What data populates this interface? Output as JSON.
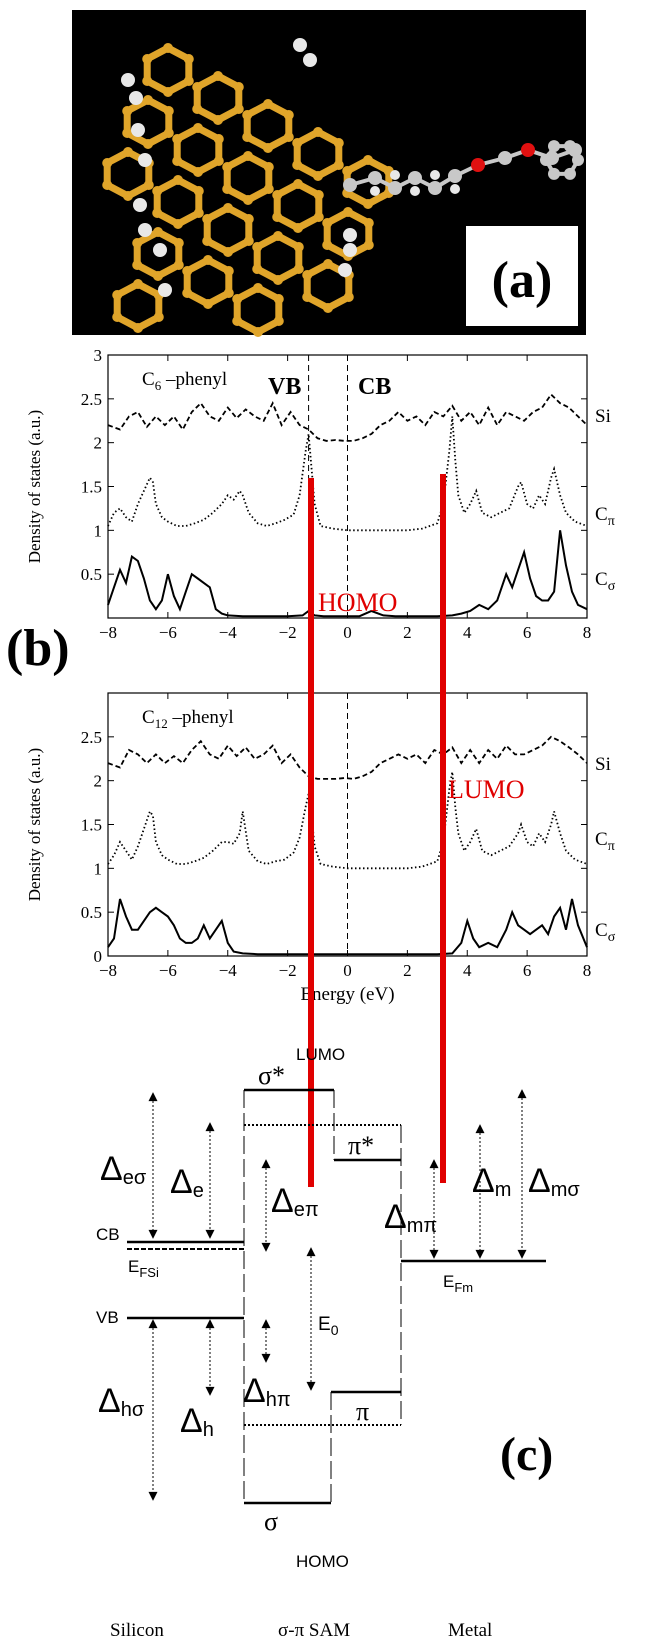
{
  "panel_a": {
    "label": "(a)",
    "colors": {
      "background": "#000000",
      "silicon": "#e0a52a",
      "hydrogen": "#e8e8e8",
      "carbon": "#c8c8c8",
      "oxygen": "#e01010"
    }
  },
  "panel_b": {
    "label": "(b)",
    "annotation_colors": {
      "homo_lumo": "#e00000"
    },
    "homo_label": "HOMO",
    "lumo_label": "LUMO",
    "vb_label": "VB",
    "cb_label": "CB",
    "homo_line_energy": -1.3,
    "lumo_line_energy": 3.2
  },
  "chart_data": [
    {
      "type": "line",
      "title": "C₆ –phenyl",
      "title_main": "C",
      "title_sub": "6",
      "title_rest": " –phenyl",
      "xlabel": "",
      "ylabel": "Density of states (a.u.)",
      "xlim": [
        -8,
        8
      ],
      "ylim": [
        0,
        3
      ],
      "xticks": [
        -8,
        -6,
        -4,
        -2,
        0,
        2,
        4,
        6,
        8
      ],
      "yticks": [
        0.5,
        1,
        1.5,
        2,
        2.5,
        3
      ],
      "ytick_labels": [
        "0.5",
        "1",
        "1.5",
        "2",
        "2.5",
        "3"
      ],
      "vlines": [
        -1.3,
        0
      ],
      "series": [
        {
          "name": "Si",
          "name_main": "Si",
          "name_sub": "",
          "style": "dashed",
          "offset": 2.15,
          "x": [
            -8,
            -7.6,
            -7.3,
            -7,
            -6.7,
            -6.4,
            -6.1,
            -5.8,
            -5.5,
            -5.2,
            -4.9,
            -4.6,
            -4.3,
            -4,
            -3.7,
            -3.4,
            -3.1,
            -2.8,
            -2.5,
            -2.2,
            -1.9,
            -1.6,
            -1.3,
            -1,
            -0.7,
            -0.4,
            -0.1,
            0.2,
            0.5,
            0.8,
            1.1,
            1.4,
            1.7,
            2,
            2.3,
            2.6,
            2.9,
            3.2,
            3.5,
            3.8,
            4.1,
            4.4,
            4.7,
            5,
            5.3,
            5.6,
            5.9,
            6.2,
            6.5,
            6.8,
            7.1,
            7.4,
            7.7,
            8
          ],
          "y": [
            2.2,
            2.15,
            2.3,
            2.35,
            2.18,
            2.3,
            2.2,
            2.3,
            2.15,
            2.35,
            2.45,
            2.3,
            2.25,
            2.4,
            2.28,
            2.38,
            2.3,
            2.25,
            2.45,
            2.2,
            2.35,
            2.2,
            2.15,
            2.05,
            2.02,
            2.03,
            2.02,
            2.02,
            2.05,
            2.1,
            2.2,
            2.25,
            2.35,
            2.25,
            2.3,
            2.2,
            2.35,
            2.3,
            2.42,
            2.25,
            2.35,
            2.2,
            2.4,
            2.2,
            2.35,
            2.3,
            2.25,
            2.35,
            2.4,
            2.55,
            2.45,
            2.4,
            2.3,
            2.2
          ]
        },
        {
          "name": "Cπ",
          "name_main": "C",
          "name_sub": "π",
          "style": "dotted",
          "x": [
            -8,
            -7.8,
            -7.6,
            -7.4,
            -7.2,
            -7,
            -6.8,
            -6.6,
            -6.5,
            -6.4,
            -6.2,
            -6,
            -5.7,
            -5.4,
            -5.1,
            -4.8,
            -4.5,
            -4.2,
            -4,
            -3.8,
            -3.6,
            -3.5,
            -3.3,
            -3,
            -2.7,
            -2.4,
            -2.1,
            -1.8,
            -1.6,
            -1.4,
            -1.3,
            -1.2,
            -1.1,
            -0.9,
            -0.5,
            0,
            0.5,
            1,
            1.5,
            2,
            2.5,
            3,
            3.2,
            3.4,
            3.5,
            3.6,
            3.7,
            3.9,
            4.1,
            4.3,
            4.5,
            4.8,
            5.1,
            5.4,
            5.7,
            5.8,
            6,
            6.2,
            6.4,
            6.6,
            6.8,
            6.9,
            7.1,
            7.3,
            7.6,
            8
          ],
          "y": [
            1.05,
            1.2,
            1.25,
            1.15,
            1.1,
            1.3,
            1.45,
            1.6,
            1.55,
            1.3,
            1.15,
            1.1,
            1.05,
            1.05,
            1.08,
            1.12,
            1.2,
            1.3,
            1.4,
            1.35,
            1.45,
            1.4,
            1.2,
            1.08,
            1.05,
            1.08,
            1.12,
            1.18,
            1.4,
            1.9,
            2.1,
            1.7,
            1.3,
            1.05,
            1.02,
            1.0,
            1.0,
            1.0,
            1.0,
            1.0,
            1.02,
            1.08,
            1.3,
            1.9,
            2.3,
            1.8,
            1.4,
            1.2,
            1.3,
            1.45,
            1.2,
            1.15,
            1.2,
            1.25,
            1.5,
            1.55,
            1.3,
            1.25,
            1.4,
            1.3,
            1.6,
            1.7,
            1.4,
            1.2,
            1.1,
            1.05
          ]
        },
        {
          "name": "Cσ",
          "name_main": "C",
          "name_sub": "σ",
          "style": "solid",
          "x": [
            -8,
            -7.8,
            -7.6,
            -7.4,
            -7.2,
            -7,
            -6.8,
            -6.6,
            -6.4,
            -6.2,
            -6,
            -5.8,
            -5.6,
            -5.4,
            -5.2,
            -5,
            -4.8,
            -4.6,
            -4.4,
            -4.2,
            -4,
            -3.5,
            -3,
            -2.5,
            -2,
            -1.5,
            -1.3,
            -1.1,
            -0.8,
            -0.4,
            0,
            0.4,
            0.8,
            1.2,
            1.6,
            2,
            2.5,
            3,
            3.5,
            3.8,
            4.1,
            4.4,
            4.7,
            5,
            5.3,
            5.5,
            5.7,
            5.9,
            6.1,
            6.3,
            6.5,
            6.7,
            6.9,
            7.1,
            7.3,
            7.5,
            7.7,
            8
          ],
          "y": [
            0.15,
            0.35,
            0.55,
            0.4,
            0.7,
            0.65,
            0.45,
            0.2,
            0.1,
            0.2,
            0.5,
            0.25,
            0.1,
            0.3,
            0.5,
            0.45,
            0.4,
            0.35,
            0.1,
            0.05,
            0.03,
            0.02,
            0.02,
            0.02,
            0.02,
            0.03,
            0.08,
            0.03,
            0.02,
            0.02,
            0.02,
            0.02,
            0.08,
            0.03,
            0.02,
            0.02,
            0.02,
            0.02,
            0.03,
            0.05,
            0.08,
            0.15,
            0.1,
            0.2,
            0.5,
            0.35,
            0.55,
            0.75,
            0.45,
            0.25,
            0.2,
            0.2,
            0.3,
            1.0,
            0.6,
            0.3,
            0.15,
            0.1
          ]
        }
      ]
    },
    {
      "type": "line",
      "title": "C₁₂ –phenyl",
      "title_main": "C",
      "title_sub": "12",
      "title_rest": " –phenyl",
      "xlabel": "Energy (eV)",
      "ylabel": "Density of states (a.u.)",
      "xlim": [
        -8,
        8
      ],
      "ylim": [
        0,
        3
      ],
      "xticks": [
        -8,
        -6,
        -4,
        -2,
        0,
        2,
        4,
        6,
        8
      ],
      "yticks": [
        0,
        0.5,
        1,
        1.5,
        2,
        2.5
      ],
      "ytick_labels": [
        "0",
        "0.5",
        "1",
        "1.5",
        "2",
        "2.5"
      ],
      "vlines": [
        -1.3,
        0
      ],
      "series": [
        {
          "name": "Si",
          "name_main": "Si",
          "name_sub": "",
          "style": "dashed",
          "x": [
            -8,
            -7.6,
            -7.3,
            -7,
            -6.7,
            -6.4,
            -6.1,
            -5.8,
            -5.5,
            -5.2,
            -4.9,
            -4.6,
            -4.3,
            -4,
            -3.7,
            -3.4,
            -3.1,
            -2.8,
            -2.5,
            -2.2,
            -1.9,
            -1.6,
            -1.3,
            -1,
            -0.7,
            -0.4,
            -0.1,
            0.2,
            0.5,
            0.8,
            1.1,
            1.4,
            1.7,
            2,
            2.3,
            2.6,
            2.9,
            3.2,
            3.5,
            3.8,
            4.1,
            4.4,
            4.7,
            5,
            5.3,
            5.6,
            5.9,
            6.2,
            6.5,
            6.8,
            7.1,
            7.4,
            7.7,
            8
          ],
          "y": [
            2.2,
            2.15,
            2.35,
            2.3,
            2.2,
            2.3,
            2.2,
            2.28,
            2.2,
            2.35,
            2.45,
            2.3,
            2.25,
            2.4,
            2.28,
            2.38,
            2.25,
            2.3,
            2.4,
            2.2,
            2.3,
            2.15,
            2.05,
            2.02,
            2.02,
            2.02,
            2.03,
            2.02,
            2.05,
            2.1,
            2.2,
            2.25,
            2.3,
            2.25,
            2.3,
            2.2,
            2.35,
            2.3,
            2.38,
            2.2,
            2.35,
            2.2,
            2.35,
            2.25,
            2.4,
            2.3,
            2.3,
            2.35,
            2.4,
            2.5,
            2.45,
            2.38,
            2.3,
            2.2
          ]
        },
        {
          "name": "Cπ",
          "name_main": "C",
          "name_sub": "π",
          "style": "dotted",
          "x": [
            -8,
            -7.8,
            -7.6,
            -7.4,
            -7.2,
            -7,
            -6.8,
            -6.6,
            -6.5,
            -6.4,
            -6.2,
            -6,
            -5.7,
            -5.4,
            -5.1,
            -4.8,
            -4.5,
            -4.2,
            -4,
            -3.8,
            -3.6,
            -3.5,
            -3.3,
            -3,
            -2.7,
            -2.4,
            -2.1,
            -1.8,
            -1.6,
            -1.4,
            -1.3,
            -1.2,
            -1.1,
            -0.9,
            -0.5,
            0,
            0.5,
            1,
            1.5,
            2,
            2.5,
            3,
            3.2,
            3.4,
            3.5,
            3.6,
            3.7,
            3.9,
            4.1,
            4.3,
            4.5,
            4.8,
            5.1,
            5.4,
            5.7,
            5.8,
            6,
            6.2,
            6.4,
            6.6,
            6.8,
            6.9,
            7.1,
            7.3,
            7.6,
            8
          ],
          "y": [
            1.05,
            1.15,
            1.3,
            1.2,
            1.1,
            1.25,
            1.45,
            1.65,
            1.6,
            1.3,
            1.15,
            1.1,
            1.05,
            1.05,
            1.08,
            1.12,
            1.2,
            1.3,
            1.3,
            1.28,
            1.4,
            1.65,
            1.2,
            1.08,
            1.05,
            1.08,
            1.1,
            1.18,
            1.35,
            1.7,
            1.85,
            1.6,
            1.25,
            1.05,
            1.02,
            1.0,
            1.0,
            1.0,
            1.0,
            1.0,
            1.02,
            1.08,
            1.3,
            1.9,
            2.1,
            1.7,
            1.4,
            1.2,
            1.3,
            1.45,
            1.2,
            1.15,
            1.2,
            1.25,
            1.4,
            1.5,
            1.3,
            1.25,
            1.4,
            1.3,
            1.5,
            1.65,
            1.4,
            1.2,
            1.1,
            1.05
          ]
        },
        {
          "name": "Cσ",
          "name_main": "C",
          "name_sub": "σ",
          "style": "solid",
          "x": [
            -8,
            -7.8,
            -7.6,
            -7.4,
            -7.2,
            -7,
            -6.8,
            -6.6,
            -6.4,
            -6.2,
            -6,
            -5.8,
            -5.6,
            -5.4,
            -5.2,
            -5,
            -4.8,
            -4.6,
            -4.4,
            -4.2,
            -4,
            -3.8,
            -3.5,
            -3,
            -2.5,
            -2,
            -1.5,
            -1,
            -0.5,
            0,
            0.5,
            1,
            1.5,
            2,
            2.5,
            3,
            3.5,
            3.8,
            4,
            4.2,
            4.4,
            4.7,
            5,
            5.3,
            5.5,
            5.7,
            5.9,
            6.1,
            6.3,
            6.5,
            6.7,
            6.9,
            7.1,
            7.3,
            7.5,
            7.7,
            8
          ],
          "y": [
            0.1,
            0.2,
            0.65,
            0.45,
            0.3,
            0.3,
            0.4,
            0.5,
            0.55,
            0.5,
            0.45,
            0.35,
            0.2,
            0.15,
            0.15,
            0.2,
            0.35,
            0.2,
            0.3,
            0.4,
            0.15,
            0.05,
            0.03,
            0.02,
            0.02,
            0.02,
            0.02,
            0.02,
            0.02,
            0.02,
            0.02,
            0.02,
            0.02,
            0.02,
            0.02,
            0.02,
            0.03,
            0.15,
            0.4,
            0.2,
            0.1,
            0.15,
            0.1,
            0.3,
            0.5,
            0.35,
            0.3,
            0.25,
            0.3,
            0.35,
            0.25,
            0.45,
            0.55,
            0.3,
            0.65,
            0.35,
            0.1
          ]
        }
      ]
    }
  ],
  "panel_c": {
    "label": "(c)",
    "lumo_label": "LUMO",
    "homo_label": "HOMO",
    "sigma_star": "σ*",
    "pi_star": "π*",
    "pi": "π",
    "sigma": "σ",
    "cb": "CB",
    "vb": "VB",
    "efsi_main": "E",
    "efsi_sub": "FSi",
    "efm_main": "E",
    "efm_sub": "Fm",
    "e0_main": "E",
    "e0_sub": "0",
    "delta": "Δ",
    "d_esigma_sub": "eσ",
    "d_e_sub": "e",
    "d_epi_sub": "eπ",
    "d_mpi_sub": "mπ",
    "d_m_sub": "m",
    "d_msigma_sub": "mσ",
    "d_hpi_sub": "hπ",
    "d_hsigma_sub": "hσ",
    "d_h_sub": "h",
    "silicon": "Silicon",
    "sam": "σ-π SAM",
    "metal": "Metal"
  }
}
